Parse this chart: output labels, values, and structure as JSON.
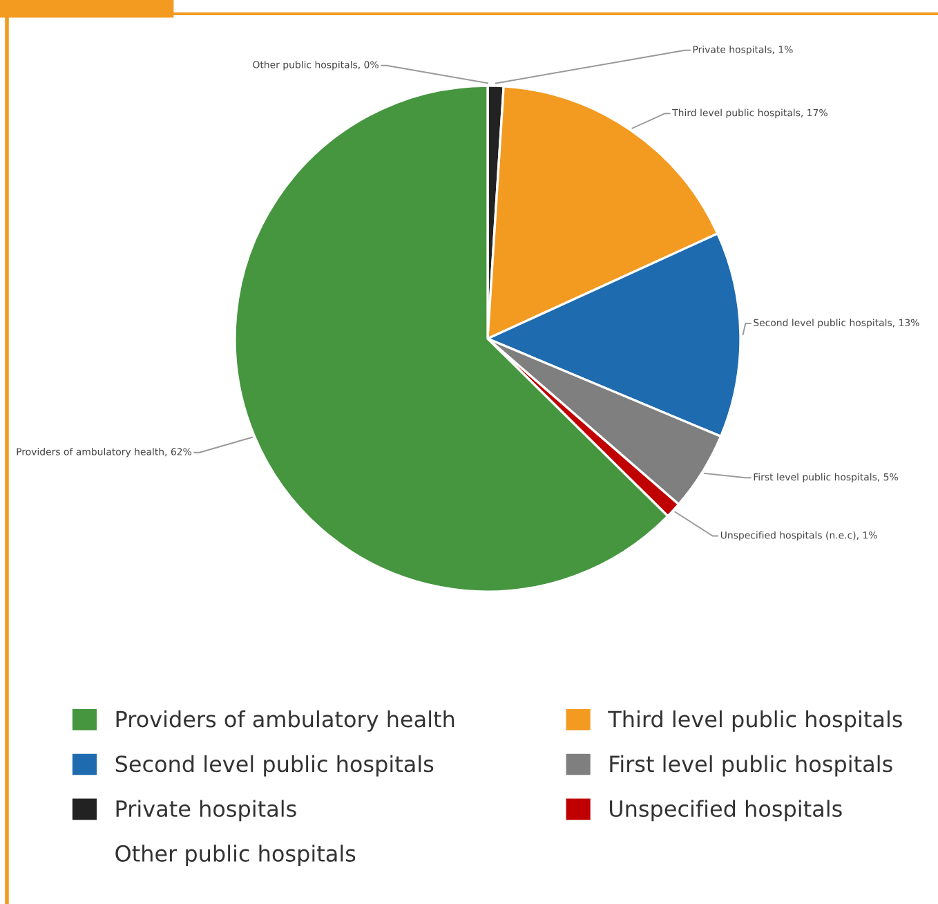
{
  "chart_data": {
    "type": "pie",
    "categories": [
      "Other public hospitals",
      "Private hospitals",
      "Third level public hospitals",
      "Second level public hospitals",
      "First level public hospitals",
      "Unspecified hospitals",
      "Providers of ambulatory health"
    ],
    "values": [
      0,
      1,
      17,
      13,
      5,
      1,
      62
    ],
    "colors": [
      "#ffffff",
      "#222222",
      "#f39a21",
      "#1f6bb0",
      "#7f7f7f",
      "#c00000",
      "#45963f"
    ],
    "value_labels": [
      "Other public hospitals, 0%",
      "Private hospitals, 1%",
      "Third level public hospitals, 17%",
      "Second level public hospitals, 13%",
      "First level public hospitals, 5%",
      "Unspecified hospitals (n.e.c), 1%",
      "Providers of ambulatory health, 62%"
    ],
    "legend": "bottom"
  }
}
